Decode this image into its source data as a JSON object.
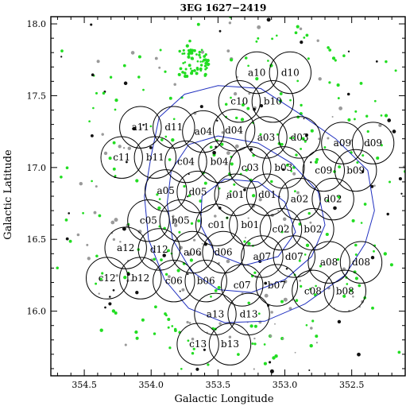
{
  "chart_data": {
    "type": "scatter",
    "title": "3EG 1627−2419",
    "xlabel": "Galactic Longitude",
    "ylabel": "Galactic Latitude",
    "xlim": [
      354.75,
      352.1
    ],
    "ylim": [
      15.55,
      18.05
    ],
    "x_reversed": true,
    "grid": false,
    "x_ticks": [
      354.5,
      354.0,
      353.5,
      353.0,
      352.5
    ],
    "x_tick_labels": [
      "354.5",
      "354.0",
      "353.5",
      "353.0",
      "352.5"
    ],
    "y_ticks": [
      16.0,
      16.5,
      17.0,
      17.5,
      18.0
    ],
    "y_tick_labels": [
      "16.0",
      "16.5",
      "17.0",
      "17.5",
      "18.0"
    ],
    "field_radius_deg": 0.145,
    "fields": [
      {
        "name": "a10",
        "l": 353.21,
        "b": 17.66
      },
      {
        "name": "d10",
        "l": 352.96,
        "b": 17.66
      },
      {
        "name": "c10",
        "l": 353.34,
        "b": 17.46
      },
      {
        "name": "b10",
        "l": 353.09,
        "b": 17.46
      },
      {
        "name": "a11",
        "l": 354.08,
        "b": 17.28
      },
      {
        "name": "d11",
        "l": 353.83,
        "b": 17.28
      },
      {
        "name": "a04",
        "l": 353.61,
        "b": 17.25
      },
      {
        "name": "d04",
        "l": 353.38,
        "b": 17.26
      },
      {
        "name": "a03",
        "l": 353.14,
        "b": 17.21
      },
      {
        "name": "d03",
        "l": 352.89,
        "b": 17.21
      },
      {
        "name": "a09",
        "l": 352.57,
        "b": 17.17
      },
      {
        "name": "d09",
        "l": 352.34,
        "b": 17.17
      },
      {
        "name": "c11",
        "l": 354.22,
        "b": 17.07
      },
      {
        "name": "b11",
        "l": 353.97,
        "b": 17.07
      },
      {
        "name": "c04",
        "l": 353.74,
        "b": 17.04
      },
      {
        "name": "b04",
        "l": 353.49,
        "b": 17.04
      },
      {
        "name": "c03",
        "l": 353.26,
        "b": 17.0
      },
      {
        "name": "b03",
        "l": 353.01,
        "b": 17.0
      },
      {
        "name": "c09",
        "l": 352.71,
        "b": 16.98
      },
      {
        "name": "b09",
        "l": 352.47,
        "b": 16.98
      },
      {
        "name": "a05",
        "l": 353.89,
        "b": 16.84
      },
      {
        "name": "d05",
        "l": 353.65,
        "b": 16.83
      },
      {
        "name": "a01",
        "l": 353.37,
        "b": 16.81
      },
      {
        "name": "d01",
        "l": 353.13,
        "b": 16.81
      },
      {
        "name": "a02",
        "l": 352.89,
        "b": 16.78
      },
      {
        "name": "d02",
        "l": 352.64,
        "b": 16.78
      },
      {
        "name": "c05",
        "l": 354.02,
        "b": 16.63
      },
      {
        "name": "b05",
        "l": 353.78,
        "b": 16.63
      },
      {
        "name": "c01",
        "l": 353.51,
        "b": 16.6
      },
      {
        "name": "b01",
        "l": 353.26,
        "b": 16.6
      },
      {
        "name": "c02",
        "l": 353.03,
        "b": 16.57
      },
      {
        "name": "b02",
        "l": 352.79,
        "b": 16.57
      },
      {
        "name": "a12",
        "l": 354.19,
        "b": 16.44
      },
      {
        "name": "d12",
        "l": 353.94,
        "b": 16.43
      },
      {
        "name": "a06",
        "l": 353.69,
        "b": 16.41
      },
      {
        "name": "d06",
        "l": 353.46,
        "b": 16.41
      },
      {
        "name": "a07",
        "l": 353.17,
        "b": 16.38
      },
      {
        "name": "d07",
        "l": 352.93,
        "b": 16.38
      },
      {
        "name": "a08",
        "l": 352.67,
        "b": 16.34
      },
      {
        "name": "d08",
        "l": 352.43,
        "b": 16.34
      },
      {
        "name": "c12",
        "l": 354.33,
        "b": 16.23
      },
      {
        "name": "b12",
        "l": 354.08,
        "b": 16.23
      },
      {
        "name": "c06",
        "l": 353.83,
        "b": 16.21
      },
      {
        "name": "b06",
        "l": 353.59,
        "b": 16.21
      },
      {
        "name": "c07",
        "l": 353.32,
        "b": 16.18
      },
      {
        "name": "b07",
        "l": 353.06,
        "b": 16.18
      },
      {
        "name": "c08",
        "l": 352.79,
        "b": 16.14
      },
      {
        "name": "b08",
        "l": 352.55,
        "b": 16.14
      },
      {
        "name": "a13",
        "l": 353.52,
        "b": 15.98
      },
      {
        "name": "d13",
        "l": 353.27,
        "b": 15.98
      },
      {
        "name": "c13",
        "l": 353.65,
        "b": 15.77
      },
      {
        "name": "b13",
        "l": 353.41,
        "b": 15.77
      }
    ],
    "contours": [
      {
        "level": "outer",
        "points": [
          [
            354.0,
            17.08
          ],
          [
            353.94,
            17.35
          ],
          [
            353.75,
            17.51
          ],
          [
            353.5,
            17.57
          ],
          [
            353.18,
            17.55
          ],
          [
            352.9,
            17.38
          ],
          [
            352.62,
            17.2
          ],
          [
            352.38,
            16.98
          ],
          [
            352.33,
            16.7
          ],
          [
            352.4,
            16.47
          ],
          [
            352.55,
            16.25
          ],
          [
            352.85,
            16.05
          ],
          [
            353.15,
            15.93
          ],
          [
            353.45,
            15.92
          ],
          [
            353.72,
            16.02
          ],
          [
            353.9,
            16.22
          ],
          [
            354.02,
            16.5
          ],
          [
            354.05,
            16.8
          ],
          [
            354.0,
            17.08
          ]
        ]
      },
      {
        "level": "middle",
        "points": [
          [
            353.85,
            16.98
          ],
          [
            353.72,
            17.16
          ],
          [
            353.5,
            17.22
          ],
          [
            353.2,
            17.17
          ],
          [
            352.95,
            17.03
          ],
          [
            352.75,
            16.83
          ],
          [
            352.7,
            16.6
          ],
          [
            352.8,
            16.38
          ],
          [
            353.0,
            16.22
          ],
          [
            353.25,
            16.13
          ],
          [
            353.5,
            16.15
          ],
          [
            353.7,
            16.28
          ],
          [
            353.84,
            16.5
          ],
          [
            353.88,
            16.75
          ],
          [
            353.85,
            16.98
          ]
        ]
      },
      {
        "level": "inner",
        "points": [
          [
            353.62,
            16.8
          ],
          [
            353.45,
            16.92
          ],
          [
            353.2,
            16.9
          ],
          [
            353.0,
            16.76
          ],
          [
            352.92,
            16.55
          ],
          [
            353.05,
            16.38
          ],
          [
            353.3,
            16.32
          ],
          [
            353.52,
            16.4
          ],
          [
            353.63,
            16.6
          ],
          [
            353.62,
            16.8
          ]
        ]
      }
    ]
  }
}
